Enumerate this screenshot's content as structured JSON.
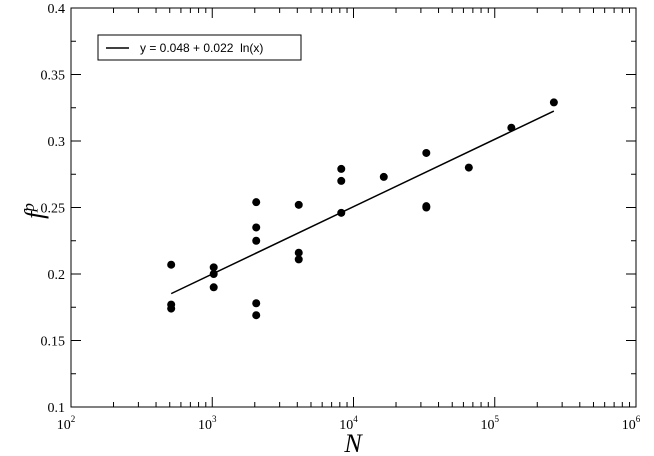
{
  "chart_data": {
    "type": "scatter",
    "title": "",
    "xlabel": "N",
    "ylabel": "f^p",
    "xscale": "log",
    "xlim": [
      100,
      1000000
    ],
    "ylim": [
      0.1,
      0.4
    ],
    "grid": false,
    "legend_position": "top-left",
    "x_ticks": [
      {
        "base": "10",
        "exp": "2",
        "value": 100
      },
      {
        "base": "10",
        "exp": "3",
        "value": 1000
      },
      {
        "base": "10",
        "exp": "4",
        "value": 10000
      },
      {
        "base": "10",
        "exp": "5",
        "value": 100000
      },
      {
        "base": "10",
        "exp": "6",
        "value": 1000000
      }
    ],
    "y_ticks": [
      {
        "label": "0.1",
        "value": 0.1
      },
      {
        "label": "0.15",
        "value": 0.15
      },
      {
        "label": "0.2",
        "value": 0.2
      },
      {
        "label": "0.25",
        "value": 0.25
      },
      {
        "label": "0.3",
        "value": 0.3
      },
      {
        "label": "0.35",
        "value": 0.35
      },
      {
        "label": "0.4",
        "value": 0.4
      }
    ],
    "series": [
      {
        "type": "scatter",
        "marker": "filled-circle",
        "color": "#000000",
        "points": [
          {
            "x": 512,
            "y": 0.207
          },
          {
            "x": 512,
            "y": 0.177
          },
          {
            "x": 512,
            "y": 0.174
          },
          {
            "x": 1024,
            "y": 0.205
          },
          {
            "x": 1024,
            "y": 0.2
          },
          {
            "x": 1024,
            "y": 0.19
          },
          {
            "x": 2048,
            "y": 0.254
          },
          {
            "x": 2048,
            "y": 0.235
          },
          {
            "x": 2048,
            "y": 0.225
          },
          {
            "x": 2048,
            "y": 0.178
          },
          {
            "x": 2048,
            "y": 0.169
          },
          {
            "x": 4096,
            "y": 0.252
          },
          {
            "x": 4096,
            "y": 0.216
          },
          {
            "x": 4096,
            "y": 0.211
          },
          {
            "x": 8192,
            "y": 0.279
          },
          {
            "x": 8192,
            "y": 0.27
          },
          {
            "x": 8192,
            "y": 0.246
          },
          {
            "x": 16384,
            "y": 0.273
          },
          {
            "x": 32768,
            "y": 0.291
          },
          {
            "x": 32768,
            "y": 0.251
          },
          {
            "x": 32768,
            "y": 0.25
          },
          {
            "x": 65536,
            "y": 0.28
          },
          {
            "x": 131072,
            "y": 0.31
          },
          {
            "x": 262144,
            "y": 0.329
          }
        ]
      },
      {
        "type": "line",
        "name": "y = 0.048 + 0.022  ln(x)",
        "color": "#000000",
        "fit": {
          "intercept": 0.048,
          "slope": 0.022,
          "function": "ln"
        },
        "x_range": [
          512,
          262144
        ]
      }
    ]
  }
}
